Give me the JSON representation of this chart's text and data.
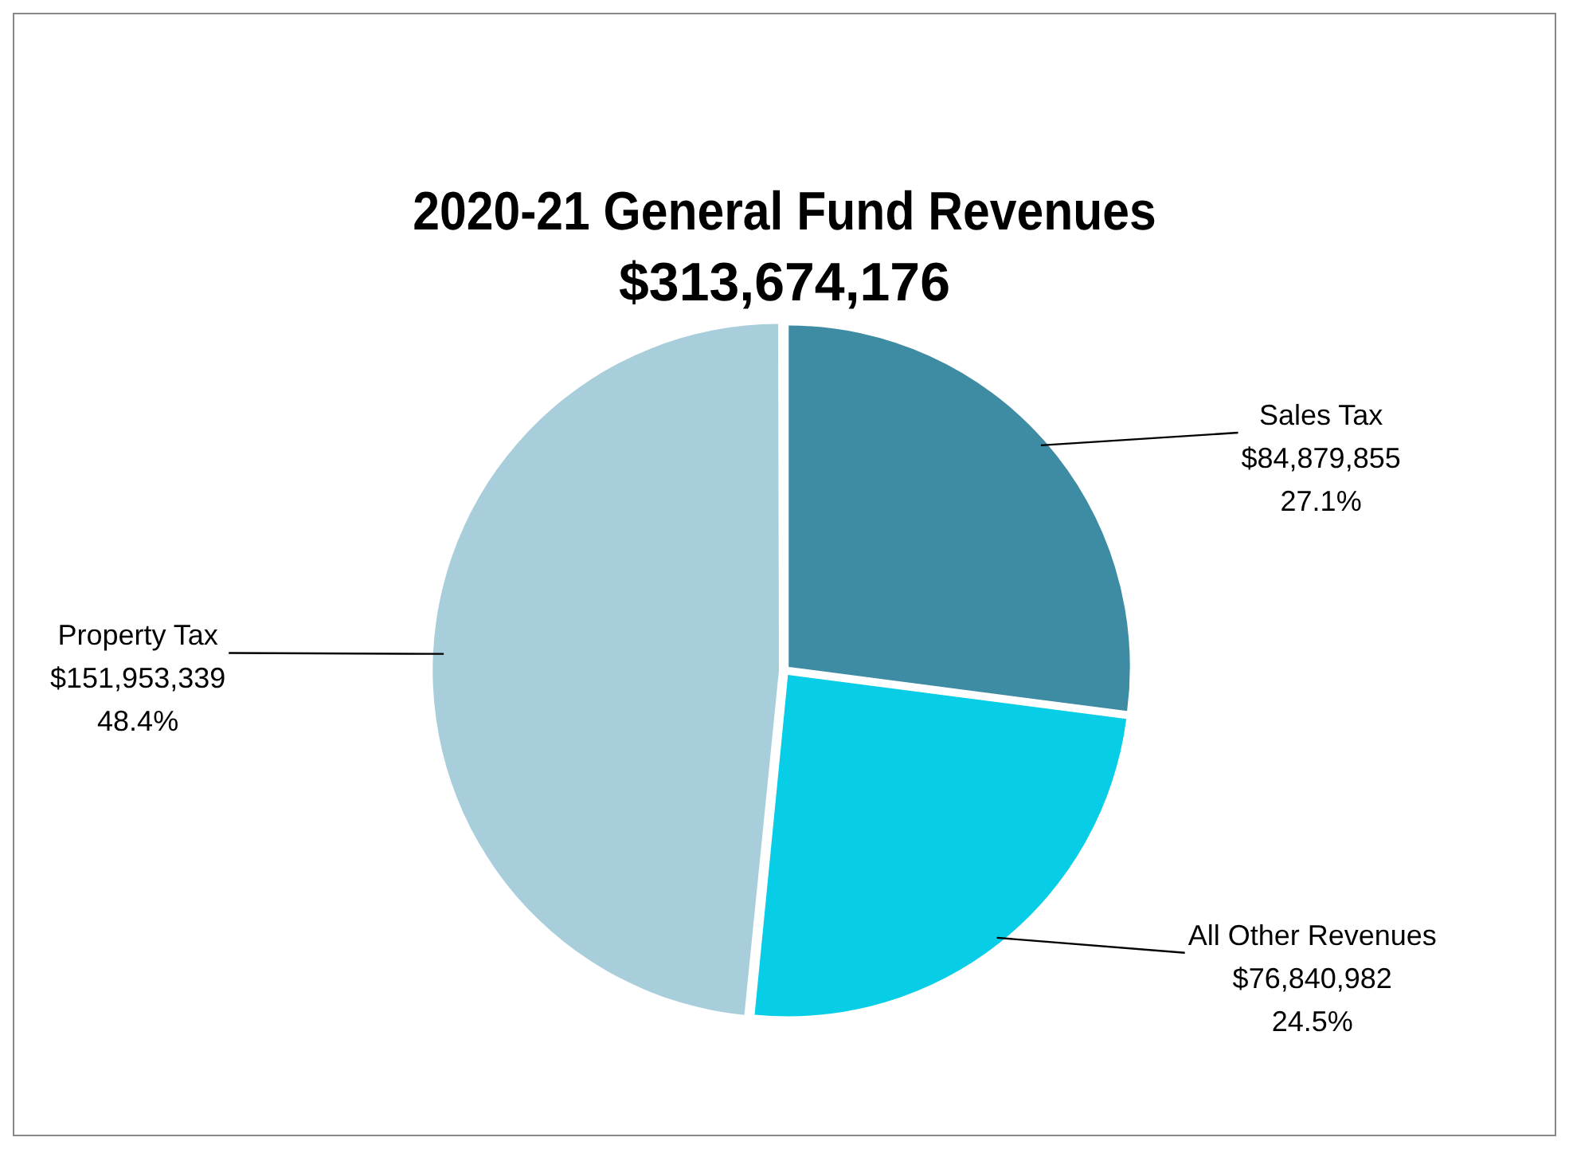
{
  "chart_data": {
    "type": "pie",
    "title": "2020-21 General Fund Revenues",
    "subtitle": "$313,674,176",
    "categories": [
      "Sales Tax",
      "All Other Revenues",
      "Property Tax"
    ],
    "values": [
      84879855,
      76840982,
      151953339
    ],
    "colors": [
      "#3d8ca3",
      "#07cde6",
      "#a8cedb"
    ],
    "value_labels": [
      "$84,879,855\n27.1%",
      "$76,840,982\n24.5%",
      "$151,953,339\n48.4%"
    ]
  }
}
